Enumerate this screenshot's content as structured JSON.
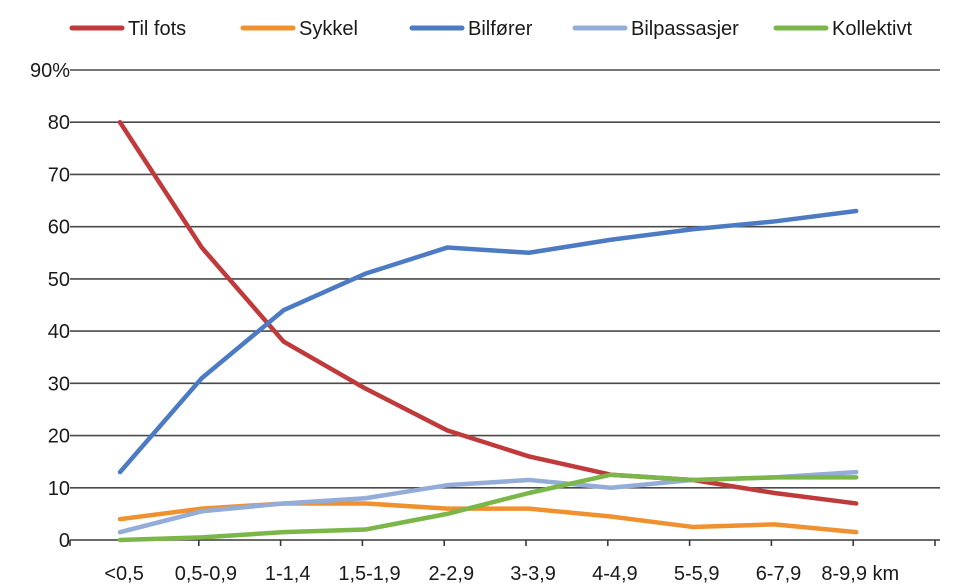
{
  "chart_data": {
    "type": "line",
    "categories": [
      "<0,5",
      "0,5-0,9",
      "1-1,4",
      "1,5-1,9",
      "2-2,9",
      "3-3,9",
      "4-4,9",
      "5-5,9",
      "6-7,9",
      "8-9,9 km"
    ],
    "ylim": [
      0,
      90
    ],
    "yticks": [
      "0",
      "10",
      "20",
      "30",
      "40",
      "50",
      "60",
      "70",
      "80",
      "90%"
    ],
    "grid": true,
    "legend_position": "top",
    "series": [
      {
        "name": "Til fots",
        "color": "#c0393b",
        "values": [
          80,
          56,
          38,
          29,
          21,
          16,
          12.5,
          11.5,
          9,
          7
        ]
      },
      {
        "name": "Sykkel",
        "color": "#f0912f",
        "values": [
          4,
          6,
          7,
          7,
          6,
          6,
          4.5,
          2.5,
          3,
          1.5
        ]
      },
      {
        "name": "Bilfører",
        "color": "#4c7bc4",
        "values": [
          13,
          31,
          44,
          51,
          56,
          55,
          57.5,
          59.5,
          61,
          63
        ]
      },
      {
        "name": "Bilpassasjer",
        "color": "#93acd8",
        "values": [
          1.5,
          5.5,
          7,
          8,
          10.5,
          11.5,
          10,
          11.5,
          12,
          13
        ]
      },
      {
        "name": "Kollektivt",
        "color": "#7ab648",
        "values": [
          0,
          0.5,
          1.5,
          2,
          5,
          9,
          12.5,
          11.5,
          12,
          12
        ]
      }
    ]
  }
}
